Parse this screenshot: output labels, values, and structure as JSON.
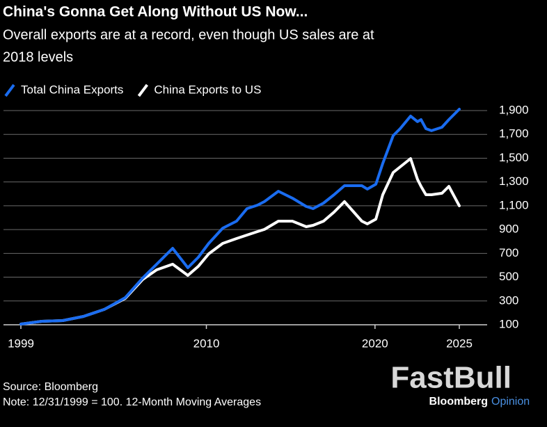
{
  "chart_data": {
    "type": "line",
    "title": "China's Gonna Get Along Without US Now...",
    "subtitle": [
      "Overall exports are at a record, even though US sales are at",
      "2018 levels"
    ],
    "source": "Source: Bloomberg",
    "note": "Note: 12/31/1999 = 100. 12-Month Moving Averages",
    "watermark": [
      "FastBull",
      "Bloomberg",
      "Opinion"
    ],
    "x": [
      1999.0,
      2000.24,
      2001.48,
      2002.71,
      2003.95,
      2005.19,
      2006.22,
      2007.05,
      2008.0,
      2008.9,
      2009.52,
      2010.14,
      2010.97,
      2011.79,
      2012.41,
      2013.03,
      2013.44,
      2014.27,
      2015.1,
      2015.92,
      2016.33,
      2016.95,
      2017.57,
      2018.19,
      2019.22,
      2019.55,
      2020.05,
      2020.46,
      2021.08,
      2021.49,
      2022.11,
      2022.52,
      2022.73,
      2023.02,
      2023.35,
      2023.97,
      2024.38,
      2025.0
    ],
    "series": [
      {
        "name": "Total China Exports",
        "color": "#1a6cf0",
        "values": [
          106,
          129,
          135,
          170,
          229,
          328,
          492,
          609,
          743,
          579,
          667,
          784,
          912,
          971,
          1076,
          1105,
          1135,
          1222,
          1164,
          1094,
          1076,
          1123,
          1193,
          1269,
          1269,
          1240,
          1281,
          1456,
          1690,
          1748,
          1854,
          1807,
          1824,
          1748,
          1731,
          1760,
          1824,
          1912
        ]
      },
      {
        "name": "China Exports to US",
        "color": "#ffffff",
        "values": [
          106,
          129,
          135,
          170,
          229,
          322,
          480,
          562,
          609,
          515,
          591,
          696,
          784,
          825,
          854,
          883,
          901,
          971,
          971,
          924,
          936,
          971,
          1047,
          1135,
          971,
          948,
          988,
          1193,
          1380,
          1427,
          1497,
          1322,
          1263,
          1193,
          1193,
          1205,
          1263,
          1100
        ]
      }
    ],
    "xlim": [
      1999,
      2025
    ],
    "xticks": [
      1999,
      2010,
      2020,
      2025
    ],
    "ylim": [
      80,
      1950
    ],
    "yticks": [
      100,
      300,
      500,
      700,
      900,
      {
        "value": 1100,
        "label": "1,100"
      },
      {
        "value": 1300,
        "label": "1,300"
      },
      {
        "value": 1500,
        "label": "1,500"
      },
      {
        "value": 1700,
        "label": "1,700"
      },
      {
        "value": 1900,
        "label": "1,900"
      }
    ],
    "grid": true,
    "legend": "top-left"
  }
}
